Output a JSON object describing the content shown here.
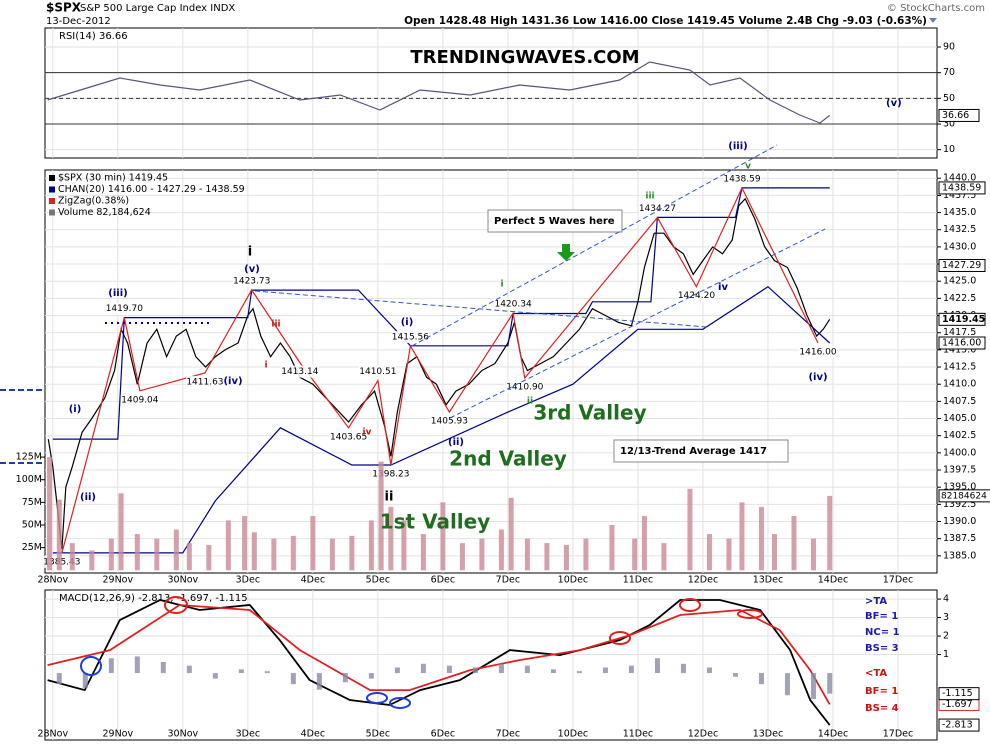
{
  "header": {
    "symbol": "$SPX",
    "name": "S&P 500 Large Cap Index INDX",
    "date": "13-Dec-2012",
    "quote": "Open 1428.48 High 1431.36 Low 1416.00 Close 1419.45 Volume 2.4B Chg -9.03 (-0.63%)",
    "credit": "© StockCharts.com"
  },
  "chart_data": [
    {
      "type": "line",
      "title": "RSI(14) 36.66",
      "color": "#55557a",
      "x": [
        -0.08,
        1.03,
        1.65,
        2.26,
        3.03,
        3.8,
        4.42,
        5.03,
        5.65,
        6.42,
        7.18,
        7.95,
        8.72,
        9.18,
        9.8,
        10.11,
        10.57,
        11.03,
        11.49,
        11.8,
        11.95
      ],
      "values": [
        48.7,
        65.8,
        60.4,
        56.5,
        64.3,
        48.7,
        52.6,
        40.9,
        56.5,
        52.6,
        60.4,
        56.5,
        64.3,
        78.3,
        72.1,
        60.4,
        65.8,
        48.7,
        37.0,
        30.8,
        36.66
      ],
      "ylim": [
        3.5,
        104.8
      ],
      "yticks": [
        10,
        30,
        50,
        70,
        90
      ],
      "levels": [
        70,
        50,
        30
      ],
      "xlim": [
        -0.12,
        13.6
      ],
      "annotation": "(v)"
    },
    {
      "type": "line",
      "xlim": [
        -0.12,
        13.6
      ],
      "ylim": [
        1382.5,
        1441.2
      ],
      "xticks": [
        {
          "value": 0,
          "label": "28Nov"
        },
        {
          "value": 1,
          "label": "29Nov"
        },
        {
          "value": 2,
          "label": "30Nov"
        },
        {
          "value": 3,
          "label": "3Dec"
        },
        {
          "value": 4,
          "label": "4Dec"
        },
        {
          "value": 5,
          "label": "5Dec"
        },
        {
          "value": 6,
          "label": "6Dec"
        },
        {
          "value": 7,
          "label": "7Dec"
        },
        {
          "value": 8,
          "label": "10Dec"
        },
        {
          "value": 9,
          "label": "11Dec"
        },
        {
          "value": 10,
          "label": "12Dec"
        },
        {
          "value": 11,
          "label": "13Dec"
        },
        {
          "value": 12,
          "label": "14Dec"
        },
        {
          "value": 13,
          "label": "17Dec"
        }
      ],
      "yticks": [
        {
          "value": 1385,
          "label": "1385.0"
        },
        {
          "value": 1387.5,
          "label": "1387.5"
        },
        {
          "value": 1390,
          "label": "1390.0"
        },
        {
          "value": 1392.5,
          "label": "1392.5"
        },
        {
          "value": 1395,
          "label": "1395.0"
        },
        {
          "value": 1397.5,
          "label": "1397.5"
        },
        {
          "value": 1400,
          "label": "1400.0"
        },
        {
          "value": 1402.5,
          "label": "1402.5"
        },
        {
          "value": 1405,
          "label": "1405.0"
        },
        {
          "value": 1407.5,
          "label": "1407.5"
        },
        {
          "value": 1410,
          "label": "1410.0"
        },
        {
          "value": 1412.5,
          "label": "1412.5"
        },
        {
          "value": 1415,
          "label": "1415.0"
        },
        {
          "value": 1417.5,
          "label": "1417.5"
        },
        {
          "value": 1420,
          "label": "1420.0"
        },
        {
          "value": 1422.5,
          "label": "1422.5"
        },
        {
          "value": 1425,
          "label": "1425.0"
        },
        {
          "value": 1427.5,
          "label": "1427.5"
        },
        {
          "value": 1430,
          "label": "1430.0"
        },
        {
          "value": 1432.5,
          "label": "1432.5"
        },
        {
          "value": 1435,
          "label": "1435.0"
        },
        {
          "value": 1437.5,
          "label": "1437.5"
        },
        {
          "value": 1440,
          "label": "1440.0"
        }
      ],
      "y2lim": [
        -3,
        442
      ],
      "y2ticks": [
        {
          "value": 25,
          "label": "25M"
        },
        {
          "value": 50,
          "label": "50M"
        },
        {
          "value": 75,
          "label": "75M"
        },
        {
          "value": 100,
          "label": "100M"
        },
        {
          "value": 125,
          "label": "125M"
        }
      ],
      "series": [
        {
          "name": "$SPX (30 min) 1419.45",
          "color": "#000000",
          "x": [
            -0.07,
            0.0,
            0.07,
            0.14,
            0.2,
            0.3,
            0.45,
            0.6,
            0.8,
            0.95,
            1.05,
            1.15,
            1.3,
            1.45,
            1.6,
            1.75,
            1.9,
            2.05,
            2.2,
            2.35,
            2.5,
            2.65,
            2.85,
            3.0,
            3.08,
            3.2,
            3.35,
            3.5,
            3.65,
            3.8,
            4.0,
            4.2,
            4.4,
            4.55,
            4.75,
            4.95,
            5.1,
            5.2,
            5.3,
            5.45,
            5.6,
            5.75,
            5.9,
            6.05,
            6.2,
            6.4,
            6.6,
            6.8,
            7.0,
            7.1,
            7.2,
            7.3,
            7.5,
            7.7,
            7.9,
            8.1,
            8.3,
            8.5,
            8.7,
            8.9,
            9.0,
            9.1,
            9.25,
            9.4,
            9.55,
            9.7,
            9.85,
            10.0,
            10.15,
            10.3,
            10.45,
            10.55,
            10.65,
            10.8,
            10.95,
            11.1,
            11.3,
            11.45,
            11.6,
            11.75,
            11.85,
            11.95
          ],
          "values": [
            1402,
            1398,
            1392,
            1386,
            1395,
            1398,
            1403,
            1405,
            1408,
            1412,
            1418,
            1416,
            1410,
            1416,
            1418,
            1414,
            1417,
            1418,
            1414,
            1412.5,
            1414,
            1415,
            1416,
            1420,
            1421,
            1417,
            1414,
            1416,
            1414,
            1411,
            1410,
            1408,
            1406,
            1404.5,
            1407,
            1409,
            1404,
            1399.5,
            1406,
            1413,
            1414,
            1411,
            1410,
            1407,
            1409,
            1410,
            1412,
            1413,
            1416,
            1419,
            1414,
            1412,
            1413,
            1414,
            1416,
            1418,
            1421,
            1420,
            1419,
            1418.5,
            1422,
            1427,
            1432,
            1432,
            1430,
            1429,
            1426,
            1428,
            1430,
            1429,
            1431,
            1436,
            1437,
            1434,
            1430,
            1428,
            1427,
            1424,
            1420,
            1417,
            1418,
            1419.45
          ]
        },
        {
          "name": "CHAN(20) 1416.00 - 1427.29 - 1438.59",
          "color": "#00008b",
          "x": [
            0.0,
            1.0,
            1.1,
            3.0,
            3.06,
            4.7,
            5.5,
            7.0,
            7.08,
            8.2,
            8.3,
            9.2,
            9.3,
            10.5,
            10.6,
            11.95
          ],
          "values": [
            1402,
            1402,
            1419.7,
            1419.7,
            1423.7,
            1423.7,
            1415.6,
            1415.6,
            1420.3,
            1420.3,
            1422,
            1422,
            1434.3,
            1434.3,
            1438.59,
            1438.59
          ],
          "lower_x": [
            0.0,
            2.0,
            2.5,
            3.5,
            4.6,
            5.2,
            7.0,
            8.0,
            9.0,
            10.0,
            11.0,
            11.95
          ],
          "lower_values": [
            1385.43,
            1385.43,
            1393,
            1403.65,
            1398.23,
            1398.23,
            1405.93,
            1410,
            1418,
            1418,
            1424.2,
            1416.0
          ]
        },
        {
          "name": "ZigZag(0.38%)",
          "color": "#e02020",
          "x": [
            0.14,
            1.1,
            1.34,
            2.34,
            3.06,
            3.8,
            4.55,
            5.0,
            5.2,
            5.5,
            6.1,
            7.08,
            7.26,
            9.3,
            9.9,
            10.6,
            11.77
          ],
          "values": [
            1385.43,
            1419.7,
            1409.04,
            1411.63,
            1423.73,
            1413.14,
            1403.65,
            1410.51,
            1398.23,
            1415.56,
            1405.93,
            1420.34,
            1410.9,
            1434.27,
            1424.2,
            1438.59,
            1416.0
          ],
          "value_labels": [
            "1385.43",
            "1419.70",
            "1409.04",
            "1411.63",
            "1423.73",
            "1413.14",
            "1403.65",
            "1410.51",
            "1398.23",
            "1415.56",
            "1405.93",
            "1420.34",
            "1410.90",
            "1434.27",
            "1424.20",
            "1438.59",
            "1416.00"
          ]
        },
        {
          "name": "Volume 82,184,624",
          "color": "#c98a96",
          "type": "bar",
          "axis": "y2",
          "x": [
            -0.05,
            0.1,
            0.3,
            0.6,
            0.9,
            1.05,
            1.3,
            1.6,
            1.9,
            2.1,
            2.4,
            2.7,
            2.95,
            3.1,
            3.4,
            3.7,
            4.0,
            4.3,
            4.6,
            4.9,
            5.05,
            5.2,
            5.4,
            5.7,
            6.0,
            6.3,
            6.6,
            6.9,
            7.05,
            7.3,
            7.6,
            7.9,
            8.2,
            8.6,
            8.95,
            9.1,
            9.4,
            9.8,
            10.1,
            10.4,
            10.6,
            10.9,
            11.1,
            11.4,
            11.7,
            11.95
          ],
          "values": [
            125,
            78,
            30,
            22,
            35,
            85,
            40,
            35,
            45,
            30,
            28,
            55,
            60,
            42,
            35,
            38,
            60,
            35,
            38,
            55,
            120,
            70,
            55,
            40,
            75,
            30,
            35,
            45,
            80,
            35,
            30,
            28,
            35,
            50,
            35,
            60,
            30,
            90,
            40,
            35,
            75,
            70,
            40,
            60,
            35,
            82.184624
          ]
        }
      ],
      "markers": [
        {
          "value": 1438.59,
          "label": "1438.59"
        },
        {
          "value": 1427.29,
          "label": "1427.29"
        },
        {
          "value": 1419.45,
          "label": "1419.45"
        },
        {
          "value": 1416.0,
          "label": "1416.00"
        }
      ],
      "y2_marker": {
        "value": 82.184624,
        "label": "82184624"
      },
      "watermark": "TRENDINGWAVES.COM",
      "boxes": [
        "Perfect 5 Waves here",
        "12/13-Trend Average 1417"
      ],
      "valleys": [
        "1st Valley",
        "2nd Valley",
        "3rd Valley"
      ],
      "wave_labels": [
        "(iii)",
        "(v)",
        "i",
        "(iv)",
        "(i)",
        "(ii)",
        "iii",
        "iv",
        "i",
        "ii",
        "(i)",
        "(ii)",
        "i",
        "ii",
        "iii",
        "iv",
        "v",
        "(iii)",
        "(iv)"
      ]
    },
    {
      "type": "line",
      "title": "MACD(12,26,9) -2.813, -1.697, -1.115",
      "xlim": [
        -0.12,
        13.6
      ],
      "ylim": [
        -3.62,
        4.49
      ],
      "yticks": [
        1,
        2,
        3,
        4
      ],
      "series": [
        {
          "name": "MACD",
          "color": "#000000",
          "x": [
            -0.08,
            0.49,
            1.03,
            1.65,
            2.26,
            3.03,
            3.49,
            3.95,
            4.57,
            5.18,
            5.65,
            6.26,
            7.03,
            7.8,
            8.72,
            9.18,
            9.65,
            10.26,
            10.88,
            11.34,
            11.65,
            11.95
          ],
          "values": [
            -0.38,
            -0.92,
            2.86,
            3.95,
            3.41,
            3.68,
            1.78,
            -0.38,
            -1.46,
            -1.73,
            -0.92,
            -0.38,
            1.24,
            0.97,
            1.78,
            2.59,
            3.95,
            3.95,
            3.41,
            1.24,
            -1.46,
            -2.813
          ]
        },
        {
          "name": "Signal",
          "color": "#e02020",
          "x": [
            -0.08,
            0.88,
            1.95,
            3.03,
            3.8,
            4.88,
            5.49,
            6.42,
            7.18,
            8.11,
            8.88,
            9.65,
            10.57,
            11.18,
            11.65,
            11.95
          ],
          "values": [
            0.43,
            1.24,
            3.68,
            3.41,
            1.24,
            -0.92,
            -0.92,
            0.16,
            0.7,
            1.24,
            2.05,
            3.14,
            3.41,
            2.32,
            0.16,
            -1.697
          ]
        },
        {
          "name": "Histogram",
          "color": "#8a8aa6",
          "type": "bar",
          "x": [
            0.1,
            0.5,
            0.9,
            1.3,
            1.7,
            2.1,
            2.5,
            2.9,
            3.3,
            3.7,
            4.1,
            4.5,
            4.9,
            5.3,
            5.7,
            6.1,
            6.5,
            6.9,
            7.3,
            7.7,
            8.1,
            8.5,
            8.9,
            9.3,
            9.7,
            10.1,
            10.5,
            10.9,
            11.3,
            11.7,
            11.95
          ],
          "values": [
            -0.6,
            -0.8,
            0.8,
            0.9,
            0.6,
            0.4,
            -0.3,
            0.2,
            0.1,
            -0.6,
            -0.9,
            -0.5,
            -0.3,
            0.3,
            0.5,
            0.4,
            0.3,
            0.5,
            0.4,
            0.2,
            0.1,
            0.3,
            0.4,
            0.8,
            0.5,
            0.3,
            -0.2,
            -0.6,
            -1.2,
            -1.4,
            -1.115
          ]
        }
      ],
      "notes": [
        ">TA",
        "BF= 1",
        "NC= 1",
        "BS= 3",
        "<TA",
        "BF= 1",
        "BS= 4"
      ]
    }
  ]
}
